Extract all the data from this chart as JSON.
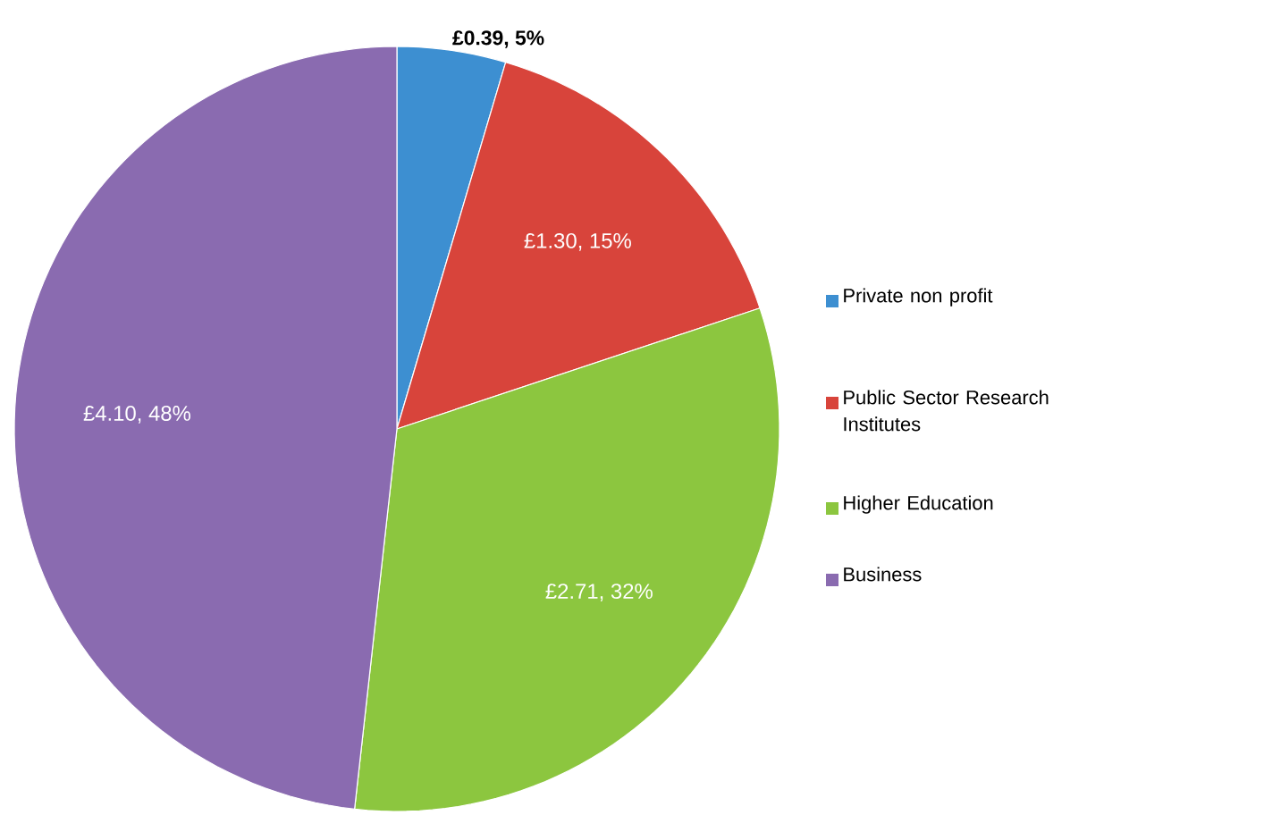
{
  "chart_data": {
    "type": "pie",
    "categories": [
      "Private non profit",
      "Public Sector Research Institutes",
      "Higher Education",
      "Business"
    ],
    "values": [
      0.39,
      1.3,
      2.71,
      4.1
    ],
    "value_labels": [
      "£0.39, 5%",
      "£1.30, 15%",
      "£2.71, 32%",
      "£4.10, 48%"
    ],
    "colors": [
      "#3d8fd1",
      "#d8443b",
      "#8cc63f",
      "#8a6bb0"
    ],
    "legend": "right"
  }
}
